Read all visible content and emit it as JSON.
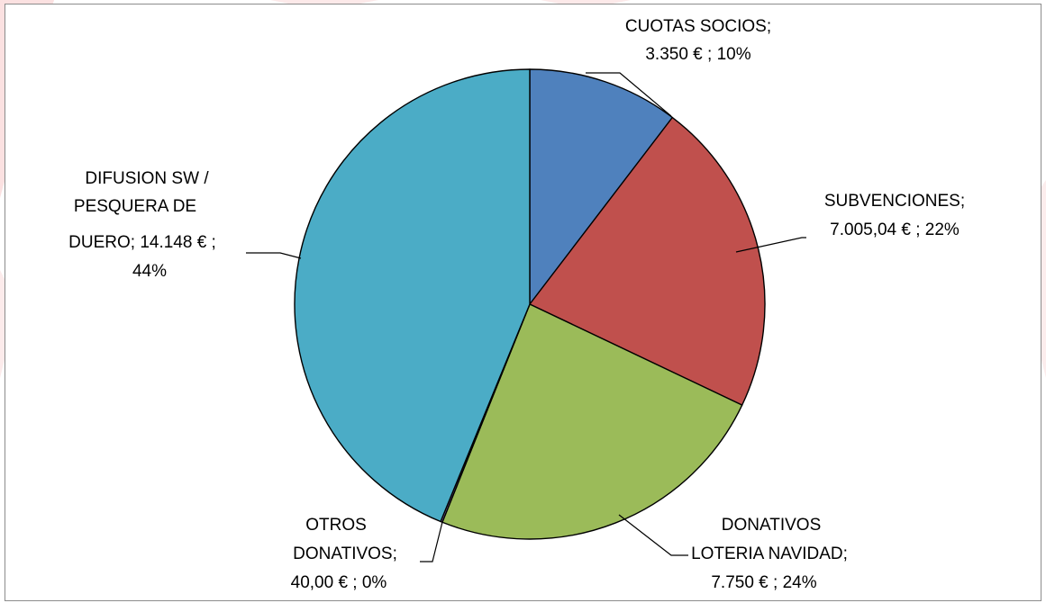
{
  "chart_data": {
    "type": "pie",
    "title": "",
    "slices": [
      {
        "name": "CUOTAS SOCIOS",
        "value": 3350,
        "display_value": "3.350 €",
        "percent": "10%",
        "color": "#4F81BD",
        "label_lines": [
          "CUOTAS SOCIOS;",
          "3.350 € ; 10%"
        ]
      },
      {
        "name": "SUBVENCIONES",
        "value": 7005.04,
        "display_value": "7.005,04 €",
        "percent": "22%",
        "color": "#C0504D",
        "label_lines": [
          "SUBVENCIONES;",
          "7.005,04 € ; 22%"
        ]
      },
      {
        "name": "DONATIVOS LOTERIA NAVIDAD",
        "value": 7750,
        "display_value": "7.750 €",
        "percent": "24%",
        "color": "#9BBB59",
        "label_lines": [
          "DONATIVOS",
          "LOTERIA NAVIDAD;",
          "7.750 € ; 24%"
        ]
      },
      {
        "name": "OTROS DONATIVOS",
        "value": 40,
        "display_value": "40,00 €",
        "percent": "0%",
        "color": "#8064A2",
        "label_lines": [
          "OTROS",
          "DONATIVOS;",
          "40,00 € ; 0%"
        ]
      },
      {
        "name": "DIFUSION SW / PESQUERA DE DUERO",
        "value": 14148,
        "display_value": "14.148 €",
        "percent": "44%",
        "color": "#4BACC6",
        "label_lines": [
          "DIFUSION SW /",
          "PESQUERA DE",
          "DUERO;  14.148 € ;",
          "44%"
        ]
      }
    ],
    "legend": "none",
    "start_angle": "12 o'clock, clockwise"
  }
}
